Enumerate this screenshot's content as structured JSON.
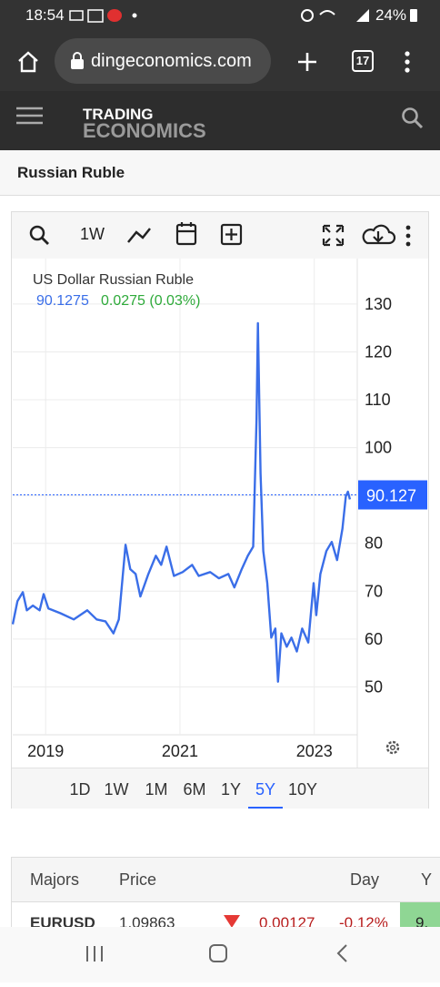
{
  "status_bar": {
    "time": "18:54",
    "battery": "24%"
  },
  "browser": {
    "url": "dingeconomics.com",
    "tab_count": "17"
  },
  "site_header": {
    "logo_top": "TRADING",
    "logo_bottom": "ECONOMICS"
  },
  "page_title": "Russian Ruble",
  "chart_toolbar": {
    "interval": "1W"
  },
  "chart_data": {
    "type": "line",
    "title": "US Dollar Russian Ruble",
    "price": 90.1275,
    "change": "0.0275 (0.03%)",
    "x": [
      2018.51,
      2018.58,
      2018.66,
      2018.72,
      2018.81,
      2018.91,
      2018.97,
      2019.04,
      2019.22,
      2019.42,
      2019.62,
      2019.76,
      2019.89,
      2020.01,
      2020.09,
      2020.19,
      2020.26,
      2020.34,
      2020.41,
      2020.53,
      2020.64,
      2020.72,
      2020.8,
      2020.91,
      2021.04,
      2021.18,
      2021.28,
      2021.45,
      2021.58,
      2021.72,
      2021.81,
      2021.92,
      2022.01,
      2022.09,
      2022.14,
      2022.16,
      2022.2,
      2022.24,
      2022.3,
      2022.36,
      2022.42,
      2022.46,
      2022.51,
      2022.59,
      2022.66,
      2022.74,
      2022.82,
      2022.91,
      2022.99,
      2023.03,
      2023.09,
      2023.18,
      2023.26,
      2023.34,
      2023.42,
      2023.47,
      2023.5,
      2023.53
    ],
    "series": [
      {
        "color": "#3a6ee8",
        "values": [
          63.1,
          67.9,
          69.8,
          66.0,
          67.0,
          66.0,
          69.4,
          66.4,
          65.4,
          64.1,
          66.0,
          64.1,
          63.7,
          61.2,
          64.1,
          79.7,
          74.6,
          73.6,
          68.9,
          73.6,
          77.4,
          75.5,
          79.3,
          73.2,
          74.0,
          75.5,
          73.2,
          74.0,
          72.7,
          73.6,
          70.8,
          74.6,
          77.4,
          79.3,
          106,
          126,
          94.6,
          78.4,
          71.7,
          60.3,
          62.2,
          51.1,
          61.2,
          58.4,
          60.3,
          57.4,
          62.2,
          59.3,
          71.7,
          65.0,
          73.6,
          78.4,
          80.3,
          76.5,
          83.1,
          89.8,
          90.8,
          89.2
        ]
      }
    ],
    "xlim": [
      2018.51,
      2023.64
    ],
    "xticks": [
      2019,
      2021,
      2023
    ],
    "ylim": [
      40,
      139.5
    ],
    "yticks": [
      50,
      60,
      70,
      80,
      90,
      100,
      110,
      120,
      130
    ],
    "ytick_labels_shown": [
      50,
      60,
      70,
      80,
      100,
      110,
      120,
      130
    ],
    "last_value": 90.127,
    "last_color": "#2962ff",
    "grid": true
  },
  "range_buttons": {
    "items": [
      "1D",
      "1W",
      "1M",
      "6M",
      "1Y",
      "5Y",
      "10Y"
    ],
    "selected_index": 5
  },
  "table": {
    "headers": [
      "Majors",
      "Price",
      "Day",
      "Y"
    ],
    "rows": [
      [
        "EURUSD",
        "1.09863",
        "0.00127",
        "-0.12%",
        "9."
      ]
    ]
  }
}
